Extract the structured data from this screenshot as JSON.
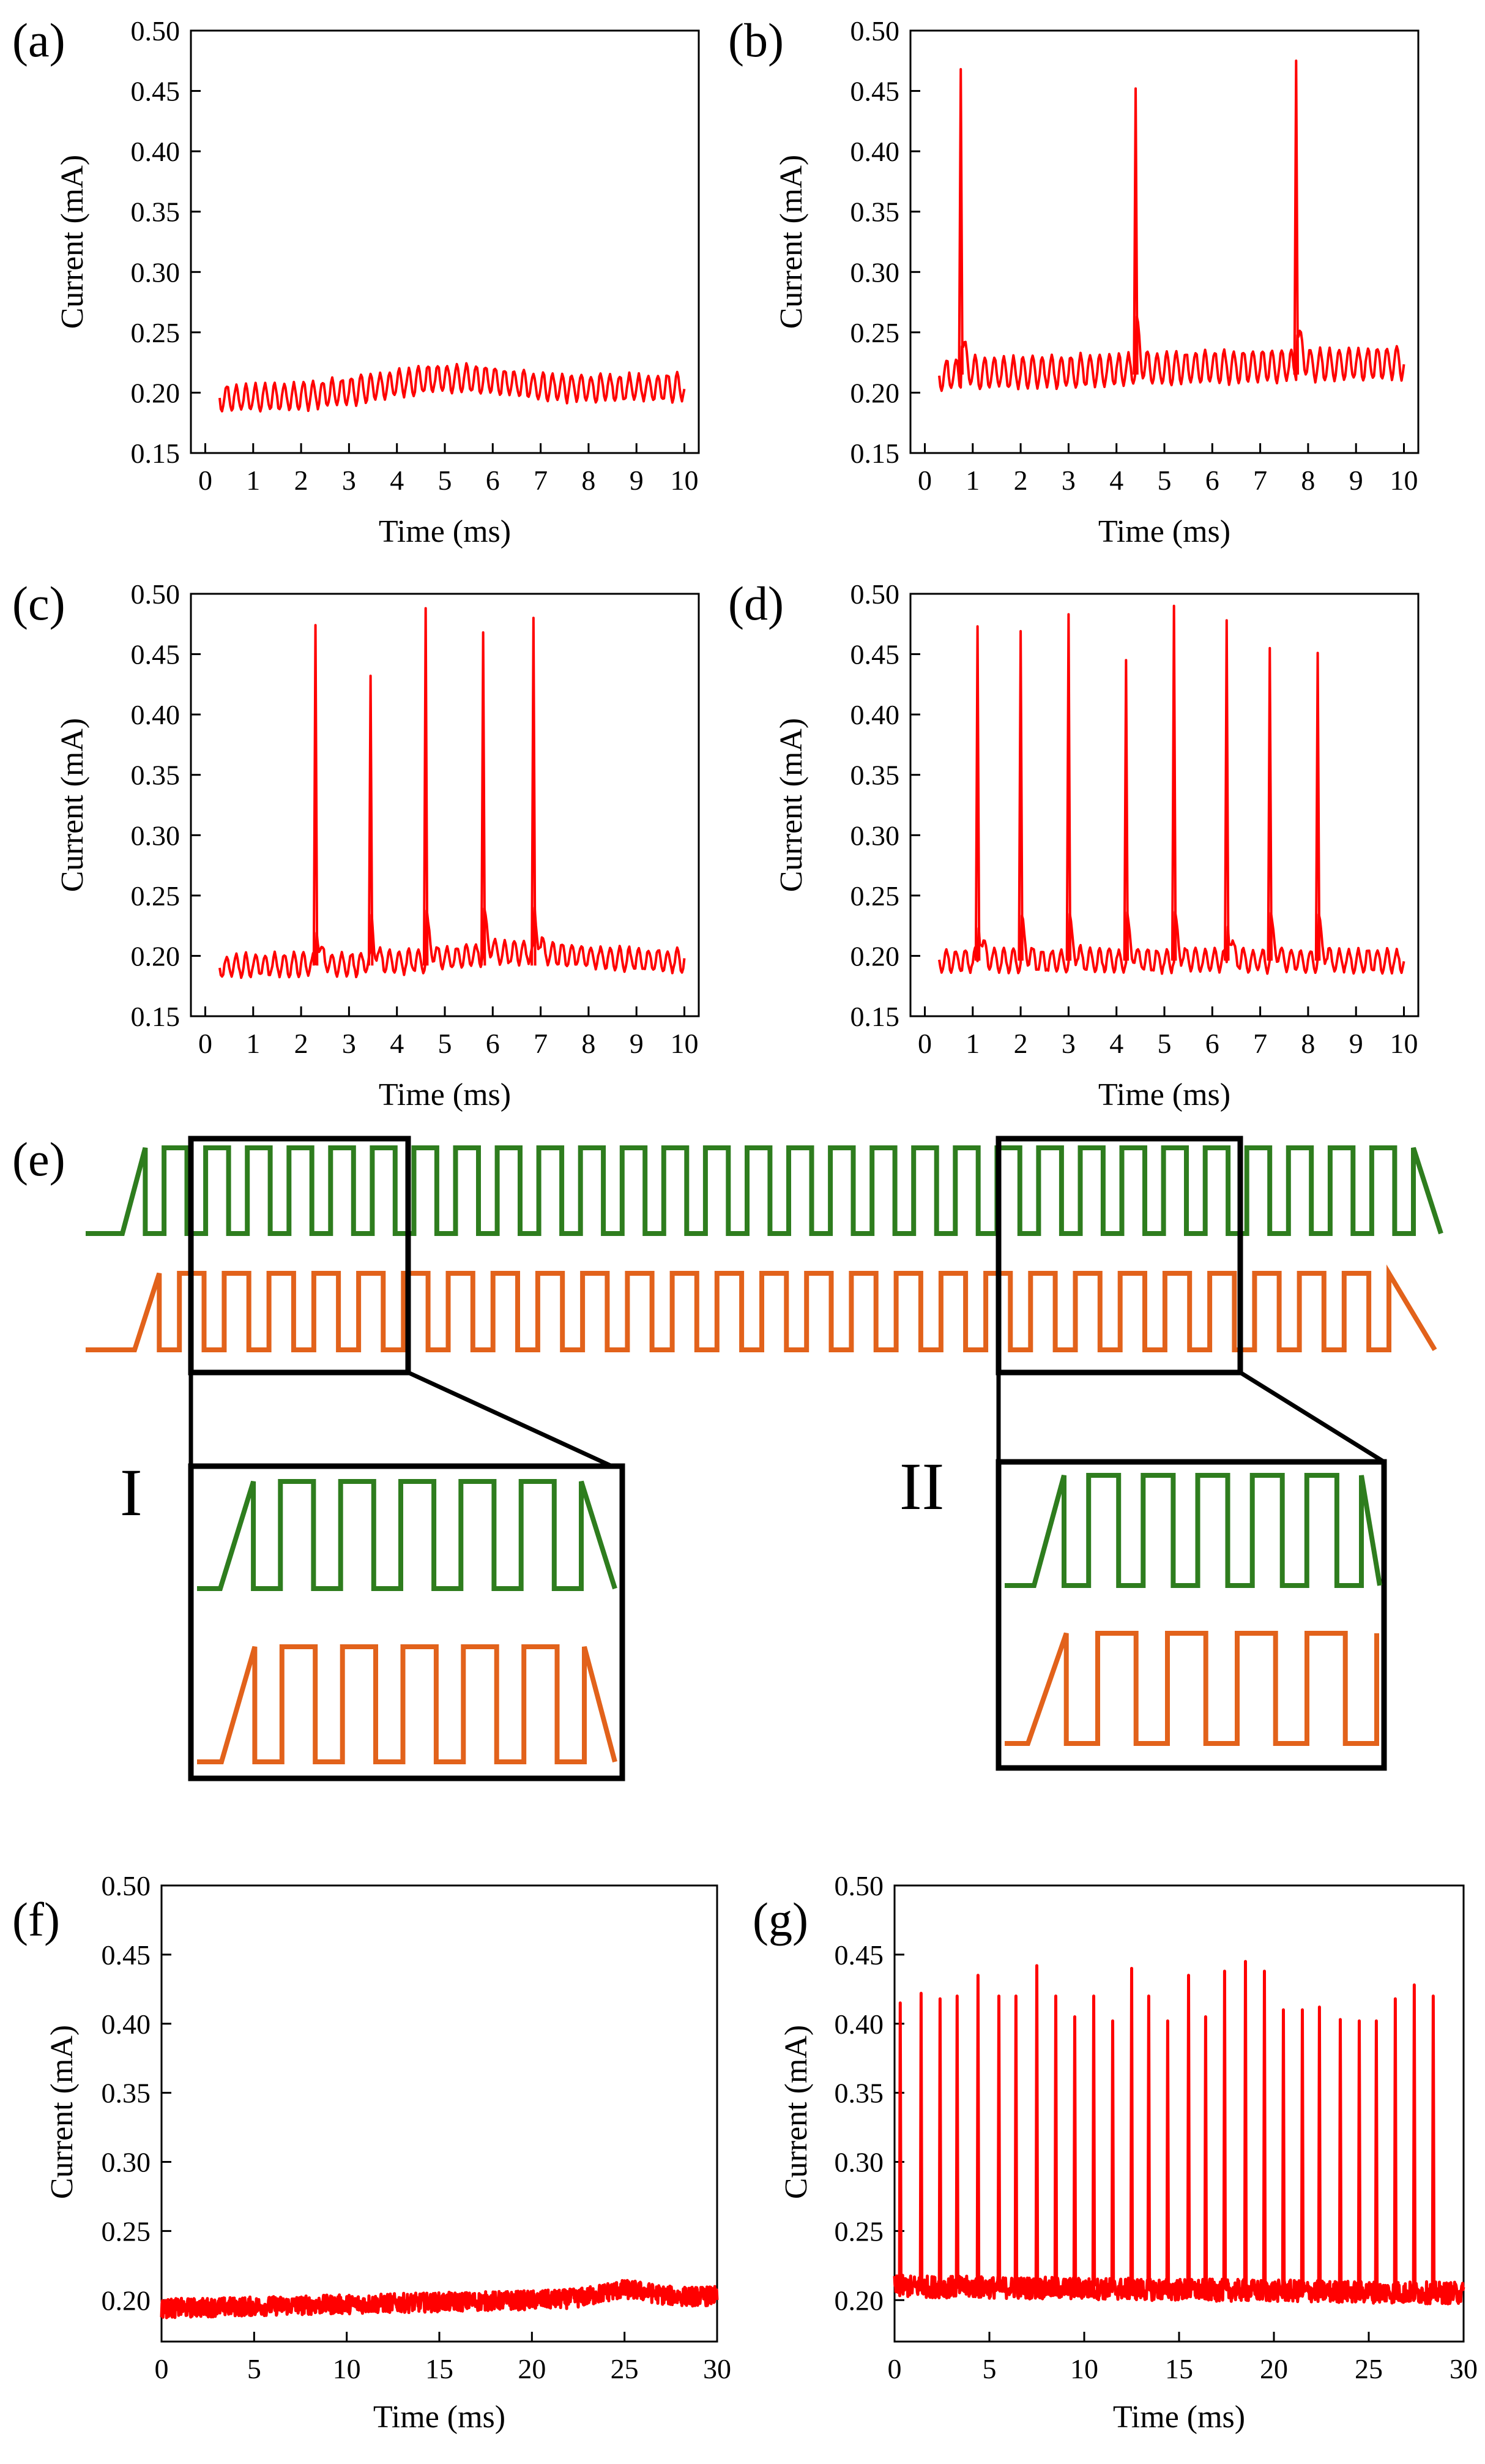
{
  "chart_data": [
    {
      "id": "a",
      "panel_label": "(a)",
      "type": "line",
      "xlabel": "Time (ms)",
      "ylabel": "Current (mA)",
      "xlim": [
        -0.3,
        10.3
      ],
      "ylim": [
        0.15,
        0.5
      ],
      "xticks": [
        0,
        1,
        2,
        3,
        4,
        5,
        6,
        7,
        8,
        9,
        10
      ],
      "yticks": [
        0.15,
        0.2,
        0.25,
        0.3,
        0.35,
        0.4,
        0.45,
        0.5
      ],
      "grid": false,
      "baseline": {
        "x_start": 0.3,
        "x_end": 10.0,
        "start_level": 0.195,
        "end_level": 0.205,
        "bump_center": 5.0,
        "bump_height": 0.012,
        "ripple": 0.011,
        "period": 0.2
      },
      "spikes": []
    },
    {
      "id": "b",
      "panel_label": "(b)",
      "type": "line",
      "xlabel": "Time (ms)",
      "ylabel": "Current (mA)",
      "xlim": [
        -0.3,
        10.3
      ],
      "ylim": [
        0.15,
        0.5
      ],
      "xticks": [
        0,
        1,
        2,
        3,
        4,
        5,
        6,
        7,
        8,
        9,
        10
      ],
      "yticks": [
        0.15,
        0.2,
        0.25,
        0.3,
        0.35,
        0.4,
        0.45,
        0.5
      ],
      "grid": false,
      "baseline": {
        "x_start": 0.3,
        "x_end": 10.0,
        "start_level": 0.215,
        "end_level": 0.225,
        "bump_center": 5.0,
        "bump_height": 0.0,
        "ripple": 0.013,
        "period": 0.2
      },
      "spikes": [
        {
          "x": 0.75,
          "peak": 0.468
        },
        {
          "x": 4.4,
          "peak": 0.452
        },
        {
          "x": 7.75,
          "peak": 0.475
        }
      ]
    },
    {
      "id": "c",
      "panel_label": "(c)",
      "type": "line",
      "xlabel": "Time (ms)",
      "ylabel": "Current (mA)",
      "xlim": [
        -0.3,
        10.3
      ],
      "ylim": [
        0.15,
        0.5
      ],
      "xticks": [
        0,
        1,
        2,
        3,
        4,
        5,
        6,
        7,
        8,
        9,
        10
      ],
      "yticks": [
        0.15,
        0.2,
        0.25,
        0.3,
        0.35,
        0.4,
        0.45,
        0.5
      ],
      "grid": false,
      "baseline": {
        "x_start": 0.3,
        "x_end": 10.0,
        "start_level": 0.192,
        "end_level": 0.196,
        "bump_center": 6.5,
        "bump_height": 0.008,
        "ripple": 0.009,
        "period": 0.2
      },
      "spikes": [
        {
          "x": 2.3,
          "peak": 0.474
        },
        {
          "x": 3.45,
          "peak": 0.432
        },
        {
          "x": 4.6,
          "peak": 0.488
        },
        {
          "x": 5.8,
          "peak": 0.468
        },
        {
          "x": 6.85,
          "peak": 0.48
        }
      ]
    },
    {
      "id": "d",
      "panel_label": "(d)",
      "type": "line",
      "xlabel": "Time (ms)",
      "ylabel": "Current (mA)",
      "xlim": [
        -0.3,
        10.3
      ],
      "ylim": [
        0.15,
        0.5
      ],
      "xticks": [
        0,
        1,
        2,
        3,
        4,
        5,
        6,
        7,
        8,
        9,
        10
      ],
      "yticks": [
        0.15,
        0.2,
        0.25,
        0.3,
        0.35,
        0.4,
        0.45,
        0.5
      ],
      "grid": false,
      "baseline": {
        "x_start": 0.3,
        "x_end": 10.0,
        "start_level": 0.196,
        "end_level": 0.196,
        "bump_center": 5.0,
        "bump_height": 0.0,
        "ripple": 0.009,
        "period": 0.2
      },
      "spikes": [
        {
          "x": 1.1,
          "peak": 0.473
        },
        {
          "x": 2.0,
          "peak": 0.469
        },
        {
          "x": 3.0,
          "peak": 0.483
        },
        {
          "x": 4.2,
          "peak": 0.445
        },
        {
          "x": 5.2,
          "peak": 0.49
        },
        {
          "x": 6.3,
          "peak": 0.478
        },
        {
          "x": 7.2,
          "peak": 0.455
        },
        {
          "x": 8.2,
          "peak": 0.451
        }
      ]
    },
    {
      "id": "f",
      "panel_label": "(f)",
      "type": "line",
      "xlabel": "Time (ms)",
      "ylabel": "Current (mA)",
      "xlim": [
        0,
        30
      ],
      "ylim": [
        0.17,
        0.5
      ],
      "xticks": [
        0,
        5,
        10,
        15,
        20,
        25,
        30
      ],
      "yticks": [
        0.2,
        0.25,
        0.3,
        0.35,
        0.4,
        0.45,
        0.5
      ],
      "grid": false,
      "baseline": {
        "x_start": 0.0,
        "x_end": 30.0,
        "start_level": 0.194,
        "end_level": 0.203,
        "bump_center": 25.0,
        "bump_height": 0.006,
        "ripple": 0.007,
        "period": 0.05
      },
      "spikes": []
    },
    {
      "id": "g",
      "panel_label": "(g)",
      "type": "line",
      "xlabel": "Time (ms)",
      "ylabel": "Current (mA)",
      "xlim": [
        0,
        30
      ],
      "ylim": [
        0.17,
        0.5
      ],
      "xticks": [
        0,
        5,
        10,
        15,
        20,
        25,
        30
      ],
      "yticks": [
        0.2,
        0.25,
        0.3,
        0.35,
        0.4,
        0.45,
        0.5
      ],
      "grid": false,
      "baseline": {
        "x_start": 0.0,
        "x_end": 30.0,
        "start_level": 0.21,
        "end_level": 0.205,
        "bump_center": 15.0,
        "bump_height": 0.0,
        "ripple": 0.008,
        "period": 0.05
      },
      "spikes": [
        {
          "x": 0.3,
          "peak": 0.415
        },
        {
          "x": 1.4,
          "peak": 0.422
        },
        {
          "x": 2.4,
          "peak": 0.418
        },
        {
          "x": 3.3,
          "peak": 0.42
        },
        {
          "x": 4.4,
          "peak": 0.435
        },
        {
          "x": 5.5,
          "peak": 0.42
        },
        {
          "x": 6.4,
          "peak": 0.42
        },
        {
          "x": 7.5,
          "peak": 0.442
        },
        {
          "x": 8.5,
          "peak": 0.42
        },
        {
          "x": 9.5,
          "peak": 0.405
        },
        {
          "x": 10.5,
          "peak": 0.42
        },
        {
          "x": 11.5,
          "peak": 0.402
        },
        {
          "x": 12.5,
          "peak": 0.44
        },
        {
          "x": 13.4,
          "peak": 0.42
        },
        {
          "x": 14.4,
          "peak": 0.402
        },
        {
          "x": 15.5,
          "peak": 0.435
        },
        {
          "x": 16.4,
          "peak": 0.405
        },
        {
          "x": 17.4,
          "peak": 0.438
        },
        {
          "x": 18.5,
          "peak": 0.445
        },
        {
          "x": 19.5,
          "peak": 0.438
        },
        {
          "x": 20.5,
          "peak": 0.41
        },
        {
          "x": 21.5,
          "peak": 0.41
        },
        {
          "x": 22.4,
          "peak": 0.412
        },
        {
          "x": 23.5,
          "peak": 0.403
        },
        {
          "x": 24.5,
          "peak": 0.402
        },
        {
          "x": 25.4,
          "peak": 0.402
        },
        {
          "x": 26.4,
          "peak": 0.418
        },
        {
          "x": 27.4,
          "peak": 0.428
        },
        {
          "x": 28.4,
          "peak": 0.42
        }
      ]
    }
  ],
  "diagram_e": {
    "panel_label": "(e)",
    "inset_labels": [
      "I",
      "II"
    ],
    "colors": {
      "green": "#2e7d1e",
      "orange": "#e2621b"
    },
    "green_pulses": 31,
    "orange_pulses": 28,
    "inset_I_green_pulses": 6,
    "inset_I_orange_pulses": 6,
    "inset_II_green_pulses": 6,
    "inset_II_orange_pulses": 5
  }
}
